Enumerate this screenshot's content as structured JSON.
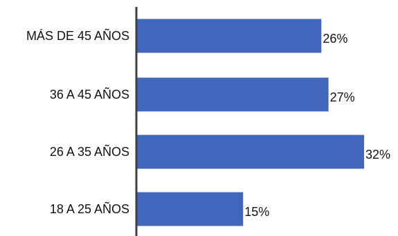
{
  "chart_data": {
    "type": "bar",
    "orientation": "horizontal",
    "categories": [
      "MÁS DE 45 AÑOS",
      "36 A 45 AÑOS",
      "26 A 35 AÑOS",
      "18 A 25 AÑOS"
    ],
    "values": [
      26,
      27,
      32,
      15
    ],
    "value_labels": [
      "26%",
      "27%",
      "32%",
      "15%"
    ],
    "value_unit": "%",
    "title": "",
    "xlabel": "",
    "ylabel": "",
    "xlim": [
      0,
      32
    ],
    "grid": false,
    "legend": "none",
    "bar_color": "#4266BC",
    "axis_color": "#404040"
  }
}
